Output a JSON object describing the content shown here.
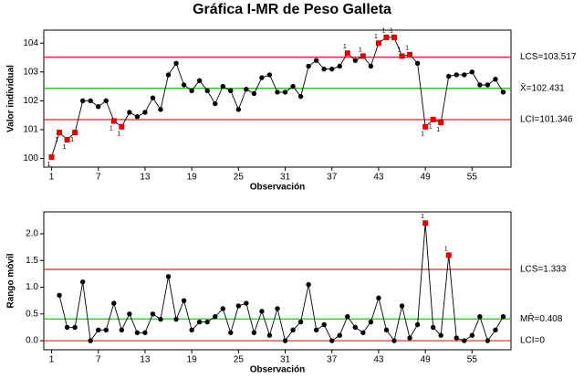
{
  "chart_data": [
    {
      "type": "line",
      "title": "Gráfica I-MR de Peso Galleta",
      "y_label": "Valor individual",
      "x_label": "Observación",
      "x": [
        1,
        2,
        3,
        4,
        5,
        6,
        7,
        8,
        9,
        10,
        11,
        12,
        13,
        14,
        15,
        16,
        17,
        18,
        19,
        20,
        21,
        22,
        23,
        24,
        25,
        26,
        27,
        28,
        29,
        30,
        31,
        32,
        33,
        34,
        35,
        36,
        37,
        38,
        39,
        40,
        41,
        42,
        43,
        44,
        45,
        46,
        47,
        48,
        49,
        50,
        51,
        52,
        53,
        54,
        55,
        56,
        57,
        58,
        59
      ],
      "values": [
        100.05,
        100.9,
        100.65,
        100.9,
        102.0,
        102.0,
        101.8,
        102.0,
        101.3,
        101.1,
        101.6,
        101.45,
        101.6,
        102.1,
        101.7,
        102.9,
        103.3,
        102.55,
        102.35,
        102.7,
        102.35,
        101.9,
        102.5,
        102.35,
        101.7,
        102.4,
        102.25,
        102.8,
        102.9,
        102.3,
        102.3,
        102.5,
        102.15,
        103.2,
        103.4,
        103.1,
        103.1,
        103.2,
        103.65,
        103.4,
        103.55,
        103.2,
        104.0,
        104.2,
        104.2,
        103.55,
        103.6,
        103.3,
        101.1,
        101.35,
        101.25,
        102.85,
        102.9,
        102.9,
        103.0,
        102.55,
        102.55,
        102.75,
        102.3
      ],
      "color": "#000000",
      "violation_color": "#e00000",
      "violation_label": "1",
      "violations": [
        1,
        2,
        3,
        4,
        9,
        10,
        39,
        41,
        43,
        44,
        45,
        46,
        47,
        49,
        50,
        51
      ],
      "control_lines": [
        {
          "value": 103.517,
          "label": "LCS=103.517",
          "color": "#e02020"
        },
        {
          "value": 102.431,
          "label": "X̄=102.431",
          "color": "#00c000"
        },
        {
          "value": 101.346,
          "label": "LCI=101.346",
          "color": "#e02020"
        }
      ],
      "xlim": [
        0,
        60
      ],
      "xticks": [
        1,
        7,
        13,
        19,
        25,
        31,
        37,
        43,
        49,
        55
      ],
      "ylim": [
        99.7,
        104.45
      ],
      "yticks": [
        100,
        101,
        102,
        103,
        104
      ]
    },
    {
      "type": "line",
      "y_label": "Rango móvil",
      "x_label": "Observación",
      "x": [
        2,
        3,
        4,
        5,
        6,
        7,
        8,
        9,
        10,
        11,
        12,
        13,
        14,
        15,
        16,
        17,
        18,
        19,
        20,
        21,
        22,
        23,
        24,
        25,
        26,
        27,
        28,
        29,
        30,
        31,
        32,
        33,
        34,
        35,
        36,
        37,
        38,
        39,
        40,
        41,
        42,
        43,
        44,
        45,
        46,
        47,
        48,
        49,
        50,
        51,
        52,
        53,
        54,
        55,
        56,
        57,
        58,
        59
      ],
      "values": [
        0.85,
        0.25,
        0.25,
        1.1,
        0,
        0.2,
        0.2,
        0.7,
        0.2,
        0.5,
        0.15,
        0.15,
        0.5,
        0.4,
        1.2,
        0.4,
        0.75,
        0.2,
        0.35,
        0.35,
        0.45,
        0.6,
        0.15,
        0.65,
        0.7,
        0.15,
        0.55,
        0.1,
        0.6,
        0,
        0.2,
        0.35,
        1.05,
        0.2,
        0.3,
        0,
        0.1,
        0.45,
        0.25,
        0.15,
        0.35,
        0.8,
        0.2,
        0,
        0.65,
        0.05,
        0.3,
        2.2,
        0.25,
        0.1,
        1.6,
        0.05,
        0,
        0.1,
        0.45,
        0,
        0.2,
        0.45
      ],
      "color": "#000000",
      "violation_color": "#e00000",
      "violation_label": "1",
      "violations": [
        49,
        52
      ],
      "control_lines": [
        {
          "value": 1.333,
          "label": "LCS=1.333",
          "color": "#e02020"
        },
        {
          "value": 0.408,
          "label": "MR̄=0.408",
          "color": "#00c000"
        },
        {
          "value": 0,
          "label": "LCI=0",
          "color": "#e02020"
        }
      ],
      "xlim": [
        0,
        60
      ],
      "xticks": [
        1,
        7,
        13,
        19,
        25,
        31,
        37,
        43,
        49,
        55
      ],
      "ylim": [
        -0.17,
        2.41
      ],
      "yticks": [
        {
          "value": 0,
          "label": "0.0"
        },
        {
          "value": 0.5,
          "label": "0.5"
        },
        {
          "value": 1,
          "label": "1.0"
        },
        {
          "value": 1.5,
          "label": "1.5"
        },
        {
          "value": 2,
          "label": "2.0"
        }
      ]
    }
  ]
}
